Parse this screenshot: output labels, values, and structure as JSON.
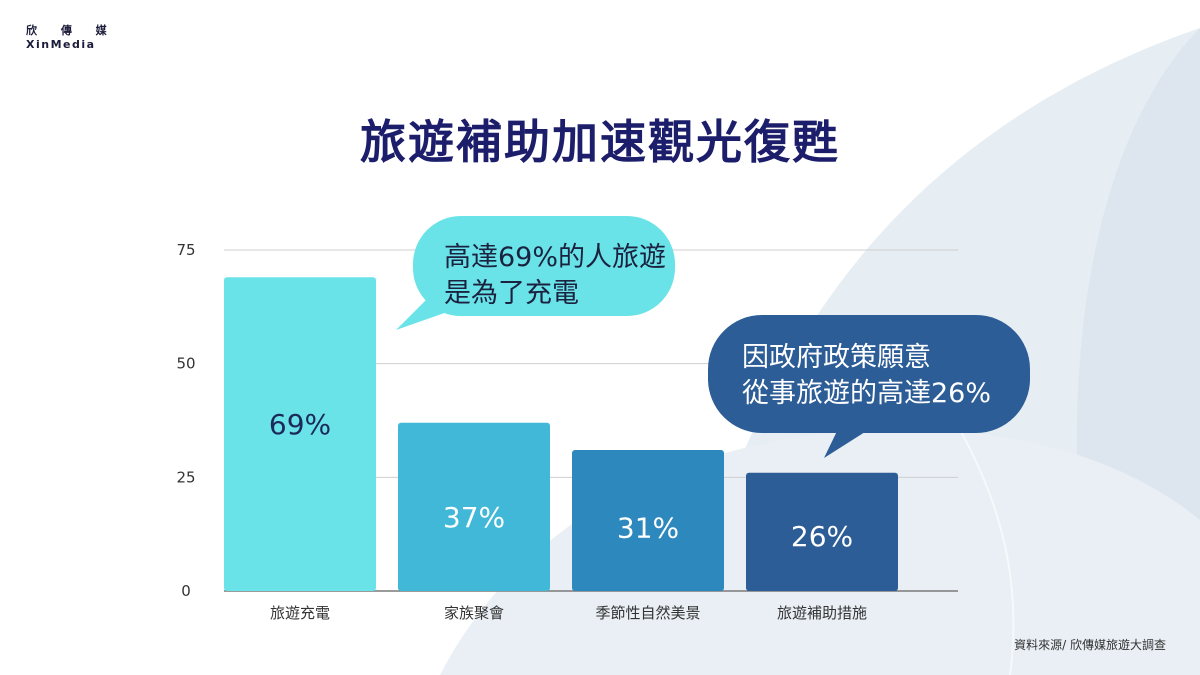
{
  "logo": {
    "cn": "欣 傳 媒",
    "en": "XinMedia"
  },
  "title": "旅遊補助加速觀光復甦",
  "source": "資料來源/ 欣傳媒旅遊大調查",
  "callouts": [
    {
      "lines": [
        "高達69%的人旅遊",
        "是為了充電"
      ],
      "color": "#69e3e8"
    },
    {
      "lines": [
        "因政府政策願意",
        "從事旅遊的高達26%"
      ],
      "color": "#2d5d96"
    }
  ],
  "colors": {
    "title": "#1c1d6b",
    "bg_shape": "#e6edf3"
  },
  "chart_data": {
    "type": "bar",
    "categories": [
      "旅遊充電",
      "家族聚會",
      "季節性自然美景",
      "旅遊補助措施"
    ],
    "values": [
      69,
      37,
      31,
      26
    ],
    "data_labels": [
      "69%",
      "37%",
      "31%",
      "26%"
    ],
    "bar_colors": [
      "#69e3e8",
      "#41b8d8",
      "#2d89bd",
      "#2d5d96"
    ],
    "label_colors": [
      "#1c2a5a",
      "#ffffff",
      "#ffffff",
      "#ffffff"
    ],
    "ylim": [
      0,
      75
    ],
    "yticks": [
      "0",
      "25",
      "50",
      "75"
    ],
    "grid": true
  }
}
